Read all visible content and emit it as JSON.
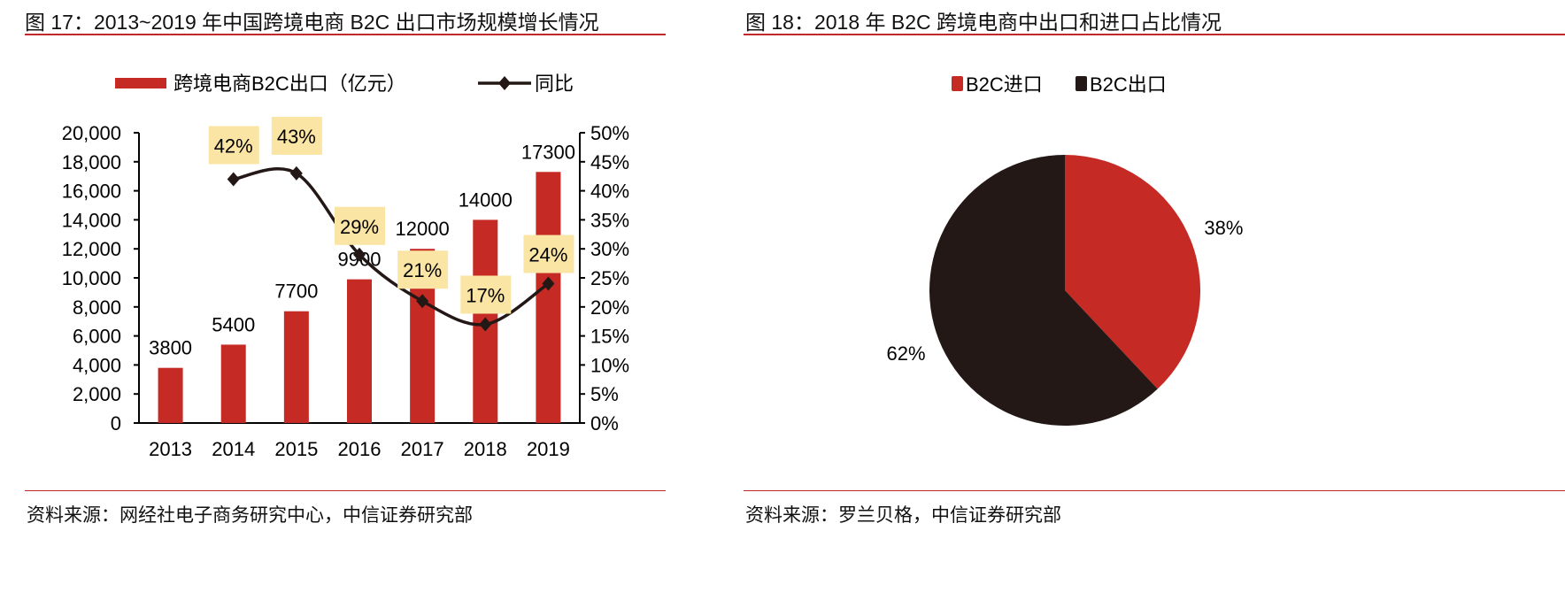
{
  "colors": {
    "bar": "#c62a24",
    "line": "#231815",
    "label_bg": "#fbe5a4",
    "rule": "#c0282a"
  },
  "left": {
    "title": "图 17：2013~2019 年中国跨境电商 B2C 出口市场规模增长情况",
    "source": "资料来源：网经社电子商务研究中心，中信证券研究部"
  },
  "right": {
    "title": "图 18：2018 年 B2C 跨境电商中出口和进口占比情况",
    "source": "资料来源：罗兰贝格，中信证券研究部"
  },
  "chart_data": [
    {
      "type": "bar",
      "categories": [
        "2013",
        "2014",
        "2015",
        "2016",
        "2017",
        "2018",
        "2019"
      ],
      "series": [
        {
          "name": "跨境电商B2C出口（亿元）",
          "values": [
            3800,
            5400,
            7700,
            9900,
            12000,
            14000,
            17300
          ],
          "axis": "left"
        },
        {
          "name": "同比",
          "type": "line",
          "values": [
            null,
            42,
            43,
            29,
            21,
            17,
            24
          ],
          "labels": [
            "",
            "42%",
            "43%",
            "29%",
            "21%",
            "17%",
            "24%"
          ],
          "axis": "right"
        }
      ],
      "bar_labels": [
        "3800",
        "5400",
        "7700",
        "9900",
        "12000",
        "14000",
        "17300"
      ],
      "ylim": [
        0,
        20000
      ],
      "yticks": [
        "0",
        "2,000",
        "4,000",
        "6,000",
        "8,000",
        "10,000",
        "12,000",
        "14,000",
        "16,000",
        "18,000",
        "20,000"
      ],
      "y2lim": [
        0,
        50
      ],
      "y2ticks": [
        "0%",
        "5%",
        "10%",
        "15%",
        "20%",
        "25%",
        "30%",
        "35%",
        "40%",
        "45%",
        "50%"
      ],
      "legend": "top"
    },
    {
      "type": "pie",
      "labels": [
        "B2C进口",
        "B2C出口"
      ],
      "values": [
        38,
        62
      ],
      "value_labels": [
        "38%",
        "62%"
      ],
      "legend": "top"
    }
  ]
}
